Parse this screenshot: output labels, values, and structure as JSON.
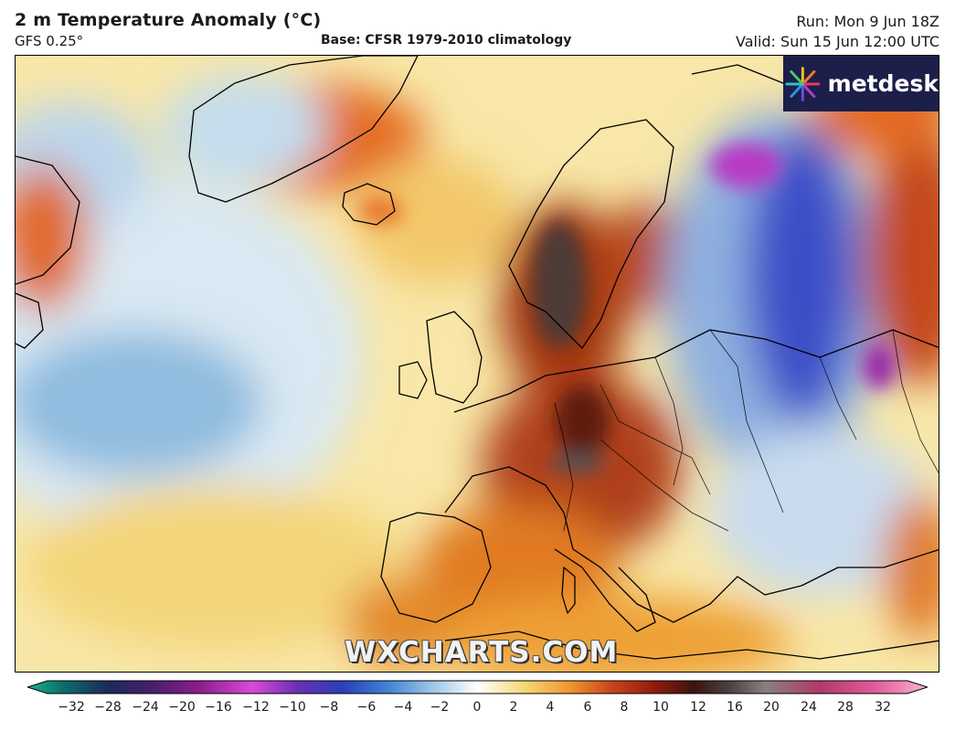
{
  "header": {
    "title": "2 m Temperature Anomaly (°C)",
    "model": "GFS 0.25°",
    "base": "Base: CFSR 1979-2010 climatology",
    "run": "Run: Mon 9 Jun 18Z",
    "valid": "Valid: Sun 15 Jun 12:00 UTC"
  },
  "logo": {
    "text": "metdesk",
    "icon": "metdesk-burst-icon"
  },
  "watermark": "WXCHARTS.COM",
  "legend": {
    "ticks": [
      "−32",
      "−28",
      "−24",
      "−20",
      "−16",
      "−12",
      "−10",
      "−8",
      "−6",
      "−4",
      "−2",
      "0",
      "2",
      "4",
      "6",
      "8",
      "10",
      "12",
      "16",
      "20",
      "24",
      "28",
      "32"
    ],
    "colors": {
      "min": "#17b58f",
      "purple": "#8a1d8a",
      "magenta": "#d84ad8",
      "blue": "#2a3fb8",
      "lightblue": "#9ec6e6",
      "white": "#ffffff",
      "yellow": "#f6d97a",
      "orange": "#ef9a2f",
      "red": "#c9431c",
      "darkred": "#6d1208",
      "gray": "#4a4141",
      "pink": "#e05a9a",
      "max": "#f7b4d3"
    }
  }
}
